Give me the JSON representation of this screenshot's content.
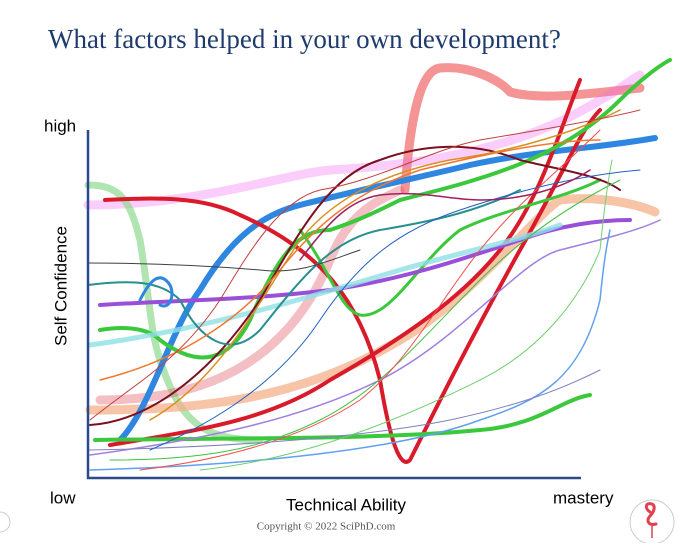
{
  "title": "What factors helped in your own development?",
  "y_axis": {
    "label": "Self Confidence",
    "high": "high"
  },
  "x_axis": {
    "label": "Technical Ability",
    "low": "low",
    "high": "mastery"
  },
  "footer": {
    "copyright": "Copyright © 2022 SciPhD.com"
  }
}
